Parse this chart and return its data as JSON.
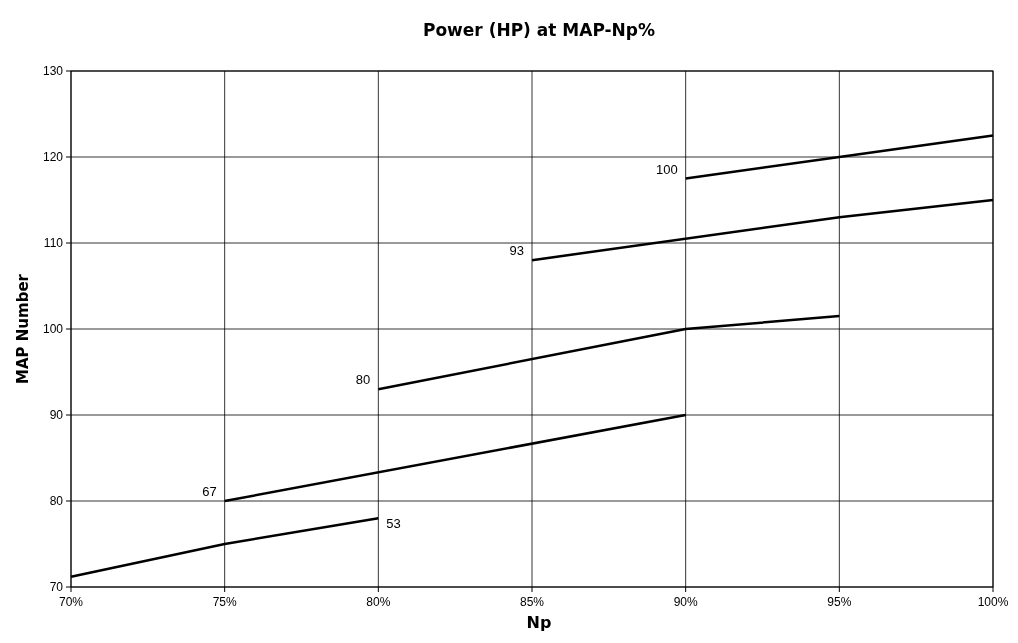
{
  "chart_data": {
    "type": "line",
    "title": "Power (HP) at MAP-Np%",
    "xlabel": "Np",
    "ylabel": "MAP Number",
    "xlim": [
      70,
      100
    ],
    "ylim": [
      70,
      130
    ],
    "xticks": [
      {
        "value": 70,
        "label": "70%"
      },
      {
        "value": 75,
        "label": "75%"
      },
      {
        "value": 80,
        "label": "80%"
      },
      {
        "value": 85,
        "label": "85%"
      },
      {
        "value": 90,
        "label": "90%"
      },
      {
        "value": 95,
        "label": "95%"
      },
      {
        "value": 100,
        "label": "100%"
      }
    ],
    "yticks": [
      70,
      80,
      90,
      100,
      110,
      120,
      130
    ],
    "grid": true,
    "marker": "none",
    "line_style": "solid",
    "series": [
      {
        "color": "#000000",
        "x": [
          70,
          75,
          80
        ],
        "values": [
          71.2,
          75,
          78
        ]
      },
      {
        "color": "#000000",
        "x": [
          75,
          90
        ],
        "values": [
          80,
          90
        ]
      },
      {
        "color": "#000000",
        "x": [
          80,
          90,
          95
        ],
        "values": [
          93,
          100,
          101.5
        ]
      },
      {
        "color": "#000000",
        "x": [
          85,
          95,
          100
        ],
        "values": [
          108,
          113,
          115
        ]
      },
      {
        "color": "#000000",
        "x": [
          90,
          95,
          100
        ],
        "values": [
          117.5,
          120,
          122.5
        ]
      }
    ],
    "annotations": [
      {
        "text": "53",
        "x": 80,
        "y": 78
      },
      {
        "text": "67",
        "x": 75,
        "y": 80
      },
      {
        "text": "80",
        "x": 80,
        "y": 93
      },
      {
        "text": "93",
        "x": 85,
        "y": 108
      },
      {
        "text": "100",
        "x": 90,
        "y": 117.5
      }
    ]
  }
}
